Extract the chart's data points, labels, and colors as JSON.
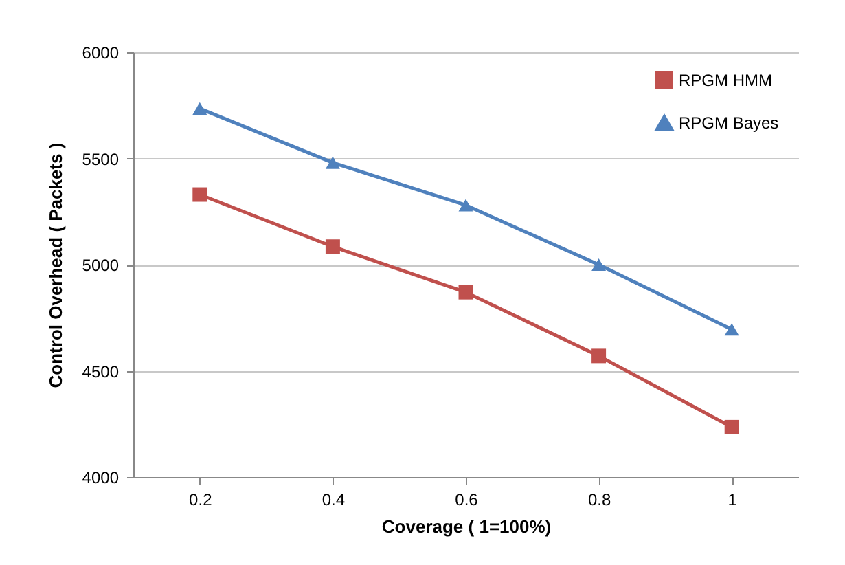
{
  "chart_data": {
    "type": "line",
    "xlabel": "Coverage ( 1=100%)",
    "ylabel": "Control Overhead ( Packets )",
    "categories": [
      "0.2",
      "0.4",
      "0.6",
      "0.8",
      "1"
    ],
    "series": [
      {
        "name": "RPGM HMM",
        "color": "#c0504d",
        "marker": "square",
        "values": [
          5330,
          5085,
          4870,
          4570,
          4235
        ]
      },
      {
        "name": "RPGM Bayes",
        "color": "#4f81bd",
        "marker": "triangle",
        "values": [
          5735,
          5480,
          5280,
          5000,
          4695
        ]
      }
    ],
    "ylim": [
      4000,
      6000
    ],
    "yticks": [
      4000,
      4500,
      5000,
      5500,
      6000
    ],
    "grid": "y",
    "legend": "top right",
    "line_style": "solid"
  }
}
